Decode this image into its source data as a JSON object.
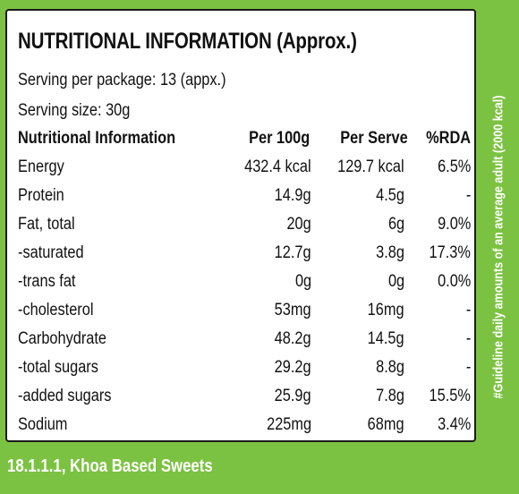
{
  "title": "NUTRITIONAL INFORMATION (Approx.)",
  "serving_per_package": "Serving per package: 13 (appx.)",
  "serving_size": "Serving size: 30g",
  "table": {
    "headers": [
      "Nutritional Information",
      "Per 100g",
      "Per Serve",
      "%RDA"
    ],
    "rows": [
      {
        "name": "Energy",
        "per100": "432.4 kcal",
        "perServe": "129.7 kcal",
        "rda": "6.5%"
      },
      {
        "name": "Protein",
        "per100": "14.9g",
        "perServe": "4.5g",
        "rda": "-"
      },
      {
        "name": "Fat, total",
        "per100": "20g",
        "perServe": "6g",
        "rda": "9.0%"
      },
      {
        "name": " -saturated",
        "per100": "12.7g",
        "perServe": "3.8g",
        "rda": "17.3%"
      },
      {
        "name": " -trans fat",
        "per100": "0g",
        "perServe": "0g",
        "rda": "0.0%"
      },
      {
        "name": " -cholesterol",
        "per100": "53mg",
        "perServe": "16mg",
        "rda": "-"
      },
      {
        "name": "Carbohydrate",
        "per100": "48.2g",
        "perServe": "14.5g",
        "rda": "-"
      },
      {
        "name": " -total sugars",
        "per100": "29.2g",
        "perServe": "8.8g",
        "rda": "-"
      },
      {
        "name": " -added sugars",
        "per100": "25.9g",
        "perServe": "7.8g",
        "rda": "15.5%"
      },
      {
        "name": "Sodium",
        "per100": "225mg",
        "perServe": "68mg",
        "rda": "3.4%"
      }
    ]
  },
  "side_note": "#Guideline daily amounts of an average adult (2000 kcal)",
  "footer": "18.1.1.1, Khoa Based Sweets",
  "colors": {
    "background_green": "#7cc242",
    "panel": "#ffffff",
    "text": "#111111"
  }
}
